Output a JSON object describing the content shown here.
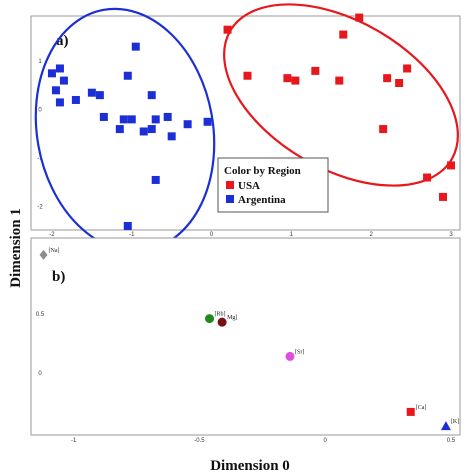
{
  "axis_titles": {
    "y": "Dimension 1",
    "x": "Dimension 0"
  },
  "chart_data": [
    {
      "panel": "a)",
      "type": "scatter",
      "xlim": [
        -2.2,
        3.05
      ],
      "ylim": [
        -2.4,
        1.85
      ],
      "x_ticks": [
        "-2",
        "-1",
        "0",
        "1",
        "2",
        "3"
      ],
      "y_ticks": [
        "1",
        "0",
        "-1",
        "-2"
      ],
      "legend": {
        "title": "Color by Region",
        "position": "bottom-center"
      },
      "colors": {
        "USA": "#e8171c",
        "Argentina": "#1c2fd6"
      },
      "series": [
        {
          "name": "USA",
          "marker": "square",
          "points": [
            [
              0.2,
              1.65
            ],
            [
              0.45,
              0.7
            ],
            [
              0.95,
              0.65
            ],
            [
              1.05,
              0.6
            ],
            [
              1.3,
              0.8
            ],
            [
              1.6,
              0.6
            ],
            [
              1.65,
              1.55
            ],
            [
              1.85,
              1.9
            ],
            [
              2.2,
              0.65
            ],
            [
              2.35,
              0.55
            ],
            [
              2.45,
              0.85
            ],
            [
              2.15,
              -0.4
            ],
            [
              2.7,
              -1.4
            ],
            [
              2.9,
              -1.8
            ],
            [
              3.0,
              -1.15
            ]
          ]
        },
        {
          "name": "Argentina",
          "marker": "square",
          "points": [
            [
              -2.0,
              0.75
            ],
            [
              -1.9,
              0.85
            ],
            [
              -1.95,
              0.4
            ],
            [
              -1.85,
              0.6
            ],
            [
              -1.9,
              0.15
            ],
            [
              -1.7,
              0.2
            ],
            [
              -1.5,
              0.35
            ],
            [
              -1.4,
              0.3
            ],
            [
              -1.35,
              -0.15
            ],
            [
              -1.15,
              -0.4
            ],
            [
              -1.1,
              -0.2
            ],
            [
              -1.05,
              0.7
            ],
            [
              -0.95,
              1.3
            ],
            [
              -1.0,
              -0.2
            ],
            [
              -0.85,
              -0.45
            ],
            [
              -0.75,
              -0.4
            ],
            [
              -0.75,
              0.3
            ],
            [
              -0.7,
              -1.45
            ],
            [
              -0.7,
              -0.2
            ],
            [
              -0.55,
              -0.15
            ],
            [
              -0.5,
              -0.55
            ],
            [
              -0.3,
              -0.3
            ],
            [
              -0.05,
              -0.25
            ],
            [
              -1.05,
              -2.4
            ]
          ]
        }
      ]
    },
    {
      "panel": "b)",
      "type": "scatter",
      "xlim": [
        -1.15,
        0.52
      ],
      "ylim": [
        -0.5,
        1.1
      ],
      "x_ticks": [
        "-1",
        "-0.5",
        "0",
        "0.5"
      ],
      "y_ticks": [
        "0.5",
        "0"
      ],
      "points": [
        {
          "label": "[Na]",
          "x": -1.12,
          "y": 1.0,
          "color": "#8c8c8c",
          "marker": "diamond"
        },
        {
          "label": "[Rb]",
          "x": -0.46,
          "y": 0.46,
          "color": "#1e8a1e",
          "marker": "circle"
        },
        {
          "label": "Mg]",
          "x": -0.41,
          "y": 0.43,
          "color": "#7a1010",
          "marker": "circle"
        },
        {
          "label": "[Sr]",
          "x": -0.14,
          "y": 0.14,
          "color": "#e04ee0",
          "marker": "circle"
        },
        {
          "label": "[Ca]",
          "x": 0.34,
          "y": -0.33,
          "color": "#e8171c",
          "marker": "square"
        },
        {
          "label": "[K]",
          "x": 0.48,
          "y": -0.45,
          "color": "#1c2fd6",
          "marker": "triangle"
        }
      ]
    }
  ]
}
